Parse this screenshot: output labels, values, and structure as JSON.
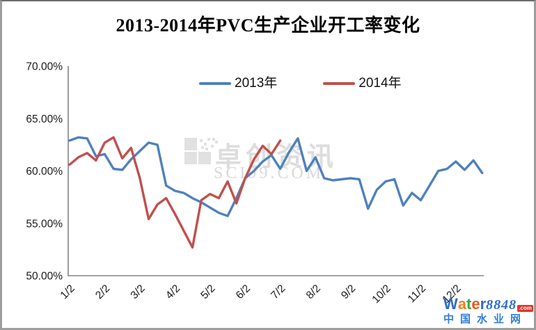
{
  "chart_data": {
    "type": "line",
    "title": "2013-2014年PVC生产企业开工率变化",
    "x_axis": {
      "tick_labels": [
        "1/2",
        "2/2",
        "3/2",
        "4/2",
        "5/2",
        "6/2",
        "7/2",
        "8/2",
        "9/2",
        "10/2",
        "11/2",
        "12/2"
      ],
      "points_per_month": 4,
      "unit": "month/day, weekly data points"
    },
    "y_axis": {
      "min": 50,
      "max": 70,
      "tick_values": [
        70,
        65,
        60,
        55,
        50
      ],
      "tick_labels": [
        "70.00%",
        "65.00%",
        "60.00%",
        "55.00%",
        "50.00%"
      ],
      "format": "percent"
    },
    "grid": false,
    "legend_position": "top-center",
    "series": [
      {
        "name": "2013年",
        "color": "#4F81BD",
        "values": [
          62.9,
          63.2,
          63.1,
          61.4,
          61.6,
          60.2,
          60.1,
          61.1,
          61.9,
          62.7,
          62.5,
          58.6,
          58.1,
          57.9,
          57.4,
          57.0,
          56.5,
          56.0,
          55.7,
          57.4,
          59.3,
          60.0,
          60.9,
          61.5,
          60.2,
          61.8,
          63.1,
          60.0,
          61.3,
          59.3,
          59.1,
          59.2,
          59.3,
          59.2,
          56.4,
          58.2,
          59.0,
          59.2,
          56.7,
          57.9,
          57.2,
          58.6,
          60.0,
          60.2,
          60.9,
          60.1,
          61.0,
          59.8
        ]
      },
      {
        "name": "2014年",
        "color": "#C0504D",
        "values": [
          60.6,
          61.3,
          61.7,
          61.0,
          62.7,
          63.2,
          61.2,
          62.2,
          59.3,
          55.4,
          56.8,
          57.4,
          55.9,
          54.3,
          52.7,
          57.2,
          57.8,
          57.4,
          59.0,
          56.9,
          59.3,
          61.1,
          62.4,
          61.6,
          62.9
        ]
      }
    ]
  },
  "watermarks": {
    "center": {
      "brand": "卓创资讯",
      "domain": "SCI99.COM"
    },
    "corner": {
      "brand_letters": [
        {
          "ch": "W",
          "color": "#2d6cc8"
        },
        {
          "ch": "a",
          "color": "#f0821e"
        },
        {
          "ch": "t",
          "color": "#3ea23e"
        },
        {
          "ch": "e",
          "color": "#e8571b"
        },
        {
          "ch": "r",
          "color": "#2d6cc8"
        }
      ],
      "brand_number": "8848",
      "brand_number_color": "#2d6cc8",
      "tld": ".com",
      "tld_bg": "#e03428",
      "subtitle": "中国水业网",
      "subtitle_color": "#2f7ed8"
    }
  }
}
